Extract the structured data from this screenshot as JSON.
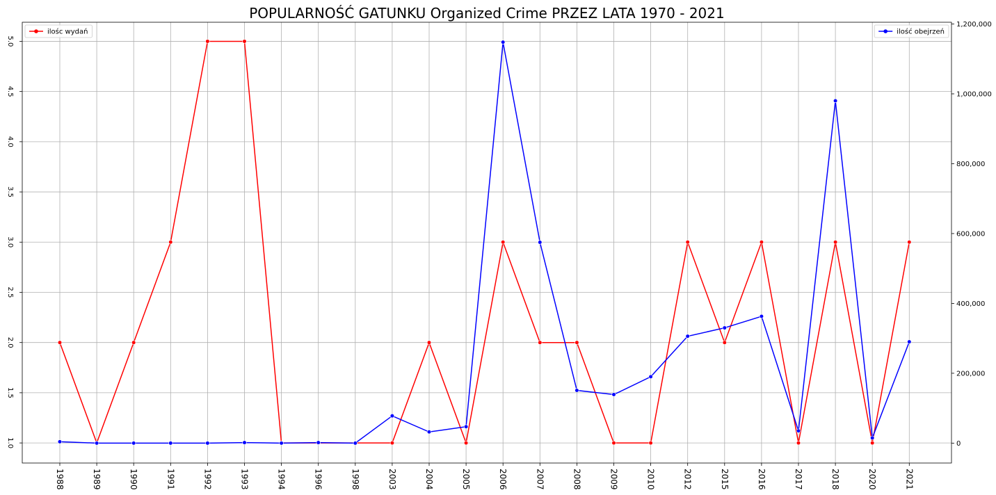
{
  "chart_data": {
    "type": "line",
    "title": "POPULARNOŚĆ GATUNKU Organized Crime PRZEZ LATA 1970 - 2021",
    "categories": [
      "1988",
      "1989",
      "1990",
      "1991",
      "1992",
      "1993",
      "1994",
      "1996",
      "1998",
      "2003",
      "2004",
      "2005",
      "2006",
      "2007",
      "2008",
      "2009",
      "2010",
      "2012",
      "2015",
      "2016",
      "2017",
      "2018",
      "2020",
      "2021"
    ],
    "grid": true,
    "series": [
      {
        "name": "ilośc wydań",
        "axis": "left",
        "color": "#ff0000",
        "legend": "upper left",
        "values": [
          2,
          1,
          2,
          3,
          5,
          5,
          1,
          1,
          1,
          1,
          2,
          1,
          3,
          2,
          2,
          1,
          1,
          3,
          2,
          3,
          1,
          3,
          1,
          3
        ]
      },
      {
        "name": "ilość obejrzeń",
        "axis": "right",
        "color": "#0000ff",
        "legend": "upper right",
        "values": [
          4000,
          0,
          0,
          0,
          0,
          1500,
          0,
          1500,
          0,
          78000,
          32000,
          47000,
          1148000,
          575000,
          151000,
          139000,
          190000,
          306000,
          330000,
          363000,
          35000,
          980000,
          15000,
          290000
        ]
      }
    ],
    "y_left": {
      "ylim": [
        0.8,
        5.19
      ],
      "ticks": [
        1.0,
        1.5,
        2.0,
        2.5,
        3.0,
        3.5,
        4.0,
        4.5,
        5.0
      ],
      "tick_labels": [
        "1.0",
        "1.5",
        "2.0",
        "2.5",
        "3.0",
        "3.5",
        "4.0",
        "4.5",
        "5.0"
      ]
    },
    "y_right": {
      "ylim": [
        -57000,
        1205000
      ],
      "ticks": [
        0,
        200000,
        400000,
        600000,
        800000,
        1000000,
        1200000
      ],
      "tick_labels": [
        "0",
        "200,000",
        "400,000",
        "600,000",
        "800,000",
        "1,000,000",
        "1,200,000"
      ]
    }
  }
}
